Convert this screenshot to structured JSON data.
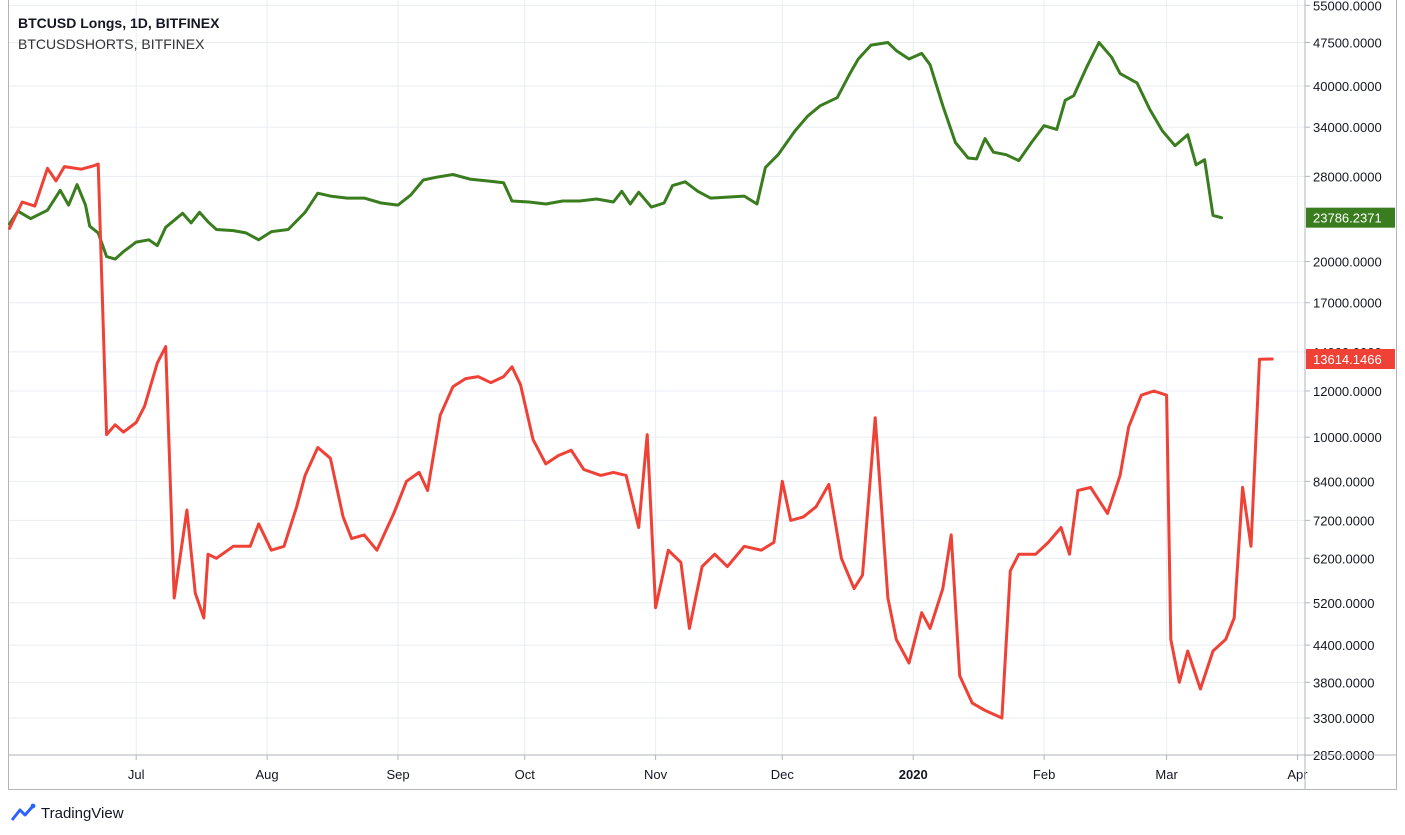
{
  "legend": {
    "series1": "BTCUSD Longs, 1D, BITFINEX",
    "series2": "BTCUSDSHORTS, BITFINEX"
  },
  "branding": {
    "name": "TradingView",
    "icon": "tradingview-logo-icon"
  },
  "colors": {
    "longs": "#3a7d1f",
    "shorts": "#ef4136",
    "grid": "#e9edf3",
    "axis_text": "#131722",
    "axis_line": "#b2b5be"
  },
  "chart_data": {
    "type": "line",
    "y_scale": "log",
    "ylim": [
      2850,
      55000
    ],
    "y_ticks": [
      "55000.0000",
      "47500.0000",
      "40000.0000",
      "34000.0000",
      "28000.0000",
      "20000.0000",
      "17000.0000",
      "14000.0000",
      "12000.0000",
      "10000.0000",
      "8400.0000",
      "7200.0000",
      "6200.0000",
      "5200.0000",
      "4400.0000",
      "3800.0000",
      "3300.0000",
      "2850.0000"
    ],
    "x_ticks": [
      "Jul",
      "Aug",
      "Sep",
      "Oct",
      "Nov",
      "Dec",
      "2020",
      "Feb",
      "Mar",
      "Apr"
    ],
    "last_value_labels": [
      {
        "series": "BTCUSD Longs",
        "text": "23786.2371"
      },
      {
        "series": "BTCUSDSHORTS",
        "text": "13614.1466"
      }
    ],
    "series": [
      {
        "name": "BTCUSD Longs",
        "color": "#3a7d1f",
        "points": [
          [
            "2019-06-01",
            23200
          ],
          [
            "2019-06-03",
            24400
          ],
          [
            "2019-06-06",
            23700
          ],
          [
            "2019-06-10",
            24500
          ],
          [
            "2019-06-13",
            26500
          ],
          [
            "2019-06-15",
            25000
          ],
          [
            "2019-06-17",
            27100
          ],
          [
            "2019-06-19",
            25000
          ],
          [
            "2019-06-20",
            23000
          ],
          [
            "2019-06-22",
            22400
          ],
          [
            "2019-06-24",
            20400
          ],
          [
            "2019-06-26",
            20200
          ],
          [
            "2019-06-28",
            20800
          ],
          [
            "2019-07-01",
            21600
          ],
          [
            "2019-07-04",
            21800
          ],
          [
            "2019-07-06",
            21300
          ],
          [
            "2019-07-08",
            22900
          ],
          [
            "2019-07-12",
            24200
          ],
          [
            "2019-07-14",
            23300
          ],
          [
            "2019-07-16",
            24300
          ],
          [
            "2019-07-18",
            23400
          ],
          [
            "2019-07-20",
            22700
          ],
          [
            "2019-07-24",
            22600
          ],
          [
            "2019-07-27",
            22400
          ],
          [
            "2019-07-30",
            21800
          ],
          [
            "2019-08-02",
            22500
          ],
          [
            "2019-08-06",
            22700
          ],
          [
            "2019-08-10",
            24300
          ],
          [
            "2019-08-13",
            26200
          ],
          [
            "2019-08-16",
            25900
          ],
          [
            "2019-08-20",
            25700
          ],
          [
            "2019-08-24",
            25700
          ],
          [
            "2019-08-28",
            25200
          ],
          [
            "2019-09-01",
            25000
          ],
          [
            "2019-09-04",
            26000
          ],
          [
            "2019-09-07",
            27600
          ],
          [
            "2019-09-10",
            27900
          ],
          [
            "2019-09-14",
            28200
          ],
          [
            "2019-09-18",
            27700
          ],
          [
            "2019-09-22",
            27500
          ],
          [
            "2019-09-26",
            27300
          ],
          [
            "2019-09-28",
            25400
          ],
          [
            "2019-10-02",
            25300
          ],
          [
            "2019-10-06",
            25100
          ],
          [
            "2019-10-10",
            25400
          ],
          [
            "2019-10-14",
            25400
          ],
          [
            "2019-10-18",
            25600
          ],
          [
            "2019-10-22",
            25300
          ],
          [
            "2019-10-24",
            26400
          ],
          [
            "2019-10-26",
            25100
          ],
          [
            "2019-10-28",
            26300
          ],
          [
            "2019-10-31",
            24800
          ],
          [
            "2019-11-03",
            25200
          ],
          [
            "2019-11-05",
            27000
          ],
          [
            "2019-11-08",
            27400
          ],
          [
            "2019-11-11",
            26400
          ],
          [
            "2019-11-14",
            25700
          ],
          [
            "2019-11-18",
            25800
          ],
          [
            "2019-11-22",
            25900
          ],
          [
            "2019-11-25",
            25100
          ],
          [
            "2019-11-27",
            29000
          ],
          [
            "2019-11-30",
            30500
          ],
          [
            "2019-12-04",
            33500
          ],
          [
            "2019-12-07",
            35500
          ],
          [
            "2019-12-10",
            37000
          ],
          [
            "2019-12-14",
            38200
          ],
          [
            "2019-12-17",
            42000
          ],
          [
            "2019-12-19",
            44500
          ],
          [
            "2019-12-22",
            47000
          ],
          [
            "2019-12-26",
            47500
          ],
          [
            "2019-12-28",
            46000
          ],
          [
            "2019-12-31",
            44500
          ],
          [
            "2020-01-03",
            45500
          ],
          [
            "2020-01-05",
            43500
          ],
          [
            "2020-01-08",
            37000
          ],
          [
            "2020-01-11",
            32000
          ],
          [
            "2020-01-14",
            30100
          ],
          [
            "2020-01-16",
            30000
          ],
          [
            "2020-01-18",
            32500
          ],
          [
            "2020-01-20",
            30800
          ],
          [
            "2020-01-23",
            30500
          ],
          [
            "2020-01-26",
            29800
          ],
          [
            "2020-01-29",
            32000
          ],
          [
            "2020-02-01",
            34200
          ],
          [
            "2020-02-04",
            33700
          ],
          [
            "2020-02-06",
            37800
          ],
          [
            "2020-02-08",
            38500
          ],
          [
            "2020-02-11",
            43000
          ],
          [
            "2020-02-14",
            47500
          ],
          [
            "2020-02-17",
            44800
          ],
          [
            "2020-02-19",
            42000
          ],
          [
            "2020-02-23",
            40500
          ],
          [
            "2020-02-26",
            36500
          ],
          [
            "2020-02-29",
            33500
          ],
          [
            "2020-03-03",
            31600
          ],
          [
            "2020-03-06",
            33000
          ],
          [
            "2020-03-08",
            29300
          ],
          [
            "2020-03-10",
            29900
          ],
          [
            "2020-03-12",
            24000
          ],
          [
            "2020-03-14",
            23786
          ]
        ]
      },
      {
        "name": "BTCUSDSHORTS",
        "color": "#ef4136",
        "points": [
          [
            "2019-06-01",
            22800
          ],
          [
            "2019-06-04",
            25300
          ],
          [
            "2019-06-07",
            24900
          ],
          [
            "2019-06-10",
            28900
          ],
          [
            "2019-06-12",
            27500
          ],
          [
            "2019-06-14",
            29100
          ],
          [
            "2019-06-18",
            28800
          ],
          [
            "2019-06-21",
            29200
          ],
          [
            "2019-06-22",
            29400
          ],
          [
            "2019-06-24",
            10100
          ],
          [
            "2019-06-26",
            10500
          ],
          [
            "2019-06-28",
            10200
          ],
          [
            "2019-07-01",
            10600
          ],
          [
            "2019-07-03",
            11300
          ],
          [
            "2019-07-06",
            13400
          ],
          [
            "2019-07-08",
            14300
          ],
          [
            "2019-07-10",
            5300
          ],
          [
            "2019-07-13",
            7500
          ],
          [
            "2019-07-15",
            5400
          ],
          [
            "2019-07-17",
            4900
          ],
          [
            "2019-07-18",
            6300
          ],
          [
            "2019-07-20",
            6200
          ],
          [
            "2019-07-24",
            6500
          ],
          [
            "2019-07-28",
            6500
          ],
          [
            "2019-07-30",
            7100
          ],
          [
            "2019-08-02",
            6400
          ],
          [
            "2019-08-05",
            6500
          ],
          [
            "2019-08-08",
            7600
          ],
          [
            "2019-08-10",
            8600
          ],
          [
            "2019-08-13",
            9600
          ],
          [
            "2019-08-16",
            9200
          ],
          [
            "2019-08-19",
            7300
          ],
          [
            "2019-08-21",
            6700
          ],
          [
            "2019-08-24",
            6800
          ],
          [
            "2019-08-27",
            6400
          ],
          [
            "2019-08-31",
            7400
          ],
          [
            "2019-09-03",
            8400
          ],
          [
            "2019-09-06",
            8700
          ],
          [
            "2019-09-08",
            8100
          ],
          [
            "2019-09-11",
            10900
          ],
          [
            "2019-09-14",
            12200
          ],
          [
            "2019-09-17",
            12600
          ],
          [
            "2019-09-20",
            12700
          ],
          [
            "2019-09-23",
            12400
          ],
          [
            "2019-09-26",
            12700
          ],
          [
            "2019-09-28",
            13200
          ],
          [
            "2019-09-30",
            12300
          ],
          [
            "2019-10-03",
            9900
          ],
          [
            "2019-10-06",
            9000
          ],
          [
            "2019-10-09",
            9300
          ],
          [
            "2019-10-12",
            9500
          ],
          [
            "2019-10-15",
            8800
          ],
          [
            "2019-10-19",
            8600
          ],
          [
            "2019-10-22",
            8700
          ],
          [
            "2019-10-25",
            8600
          ],
          [
            "2019-10-28",
            7000
          ],
          [
            "2019-10-30",
            10100
          ],
          [
            "2019-11-01",
            5100
          ],
          [
            "2019-11-04",
            6400
          ],
          [
            "2019-11-07",
            6100
          ],
          [
            "2019-11-09",
            4700
          ],
          [
            "2019-11-12",
            6000
          ],
          [
            "2019-11-15",
            6300
          ],
          [
            "2019-11-18",
            6000
          ],
          [
            "2019-11-22",
            6500
          ],
          [
            "2019-11-26",
            6400
          ],
          [
            "2019-11-29",
            6600
          ],
          [
            "2019-12-01",
            8400
          ],
          [
            "2019-12-03",
            7200
          ],
          [
            "2019-12-06",
            7300
          ],
          [
            "2019-12-09",
            7600
          ],
          [
            "2019-12-12",
            8300
          ],
          [
            "2019-12-15",
            6200
          ],
          [
            "2019-12-18",
            5500
          ],
          [
            "2019-12-20",
            5800
          ],
          [
            "2019-12-23",
            10800
          ],
          [
            "2019-12-26",
            5300
          ],
          [
            "2019-12-28",
            4500
          ],
          [
            "2019-12-31",
            4100
          ],
          [
            "2020-01-03",
            5000
          ],
          [
            "2020-01-05",
            4700
          ],
          [
            "2020-01-08",
            5500
          ],
          [
            "2020-01-10",
            6800
          ],
          [
            "2020-01-12",
            3900
          ],
          [
            "2020-01-15",
            3500
          ],
          [
            "2020-01-18",
            3400
          ],
          [
            "2020-01-22",
            3300
          ],
          [
            "2020-01-24",
            5900
          ],
          [
            "2020-01-26",
            6300
          ],
          [
            "2020-01-30",
            6300
          ],
          [
            "2020-02-02",
            6600
          ],
          [
            "2020-02-05",
            7000
          ],
          [
            "2020-02-07",
            6300
          ],
          [
            "2020-02-09",
            8100
          ],
          [
            "2020-02-12",
            8200
          ],
          [
            "2020-02-16",
            7400
          ],
          [
            "2020-02-19",
            8600
          ],
          [
            "2020-02-21",
            10400
          ],
          [
            "2020-02-24",
            11800
          ],
          [
            "2020-02-27",
            12000
          ],
          [
            "2020-03-01",
            11800
          ],
          [
            "2020-03-02",
            4500
          ],
          [
            "2020-03-04",
            3800
          ],
          [
            "2020-03-06",
            4300
          ],
          [
            "2020-03-09",
            3700
          ],
          [
            "2020-03-12",
            4300
          ],
          [
            "2020-03-15",
            4500
          ],
          [
            "2020-03-17",
            4900
          ],
          [
            "2020-03-19",
            8200
          ],
          [
            "2020-03-21",
            6500
          ],
          [
            "2020-03-23",
            13600
          ],
          [
            "2020-03-26",
            13614
          ]
        ]
      }
    ]
  }
}
